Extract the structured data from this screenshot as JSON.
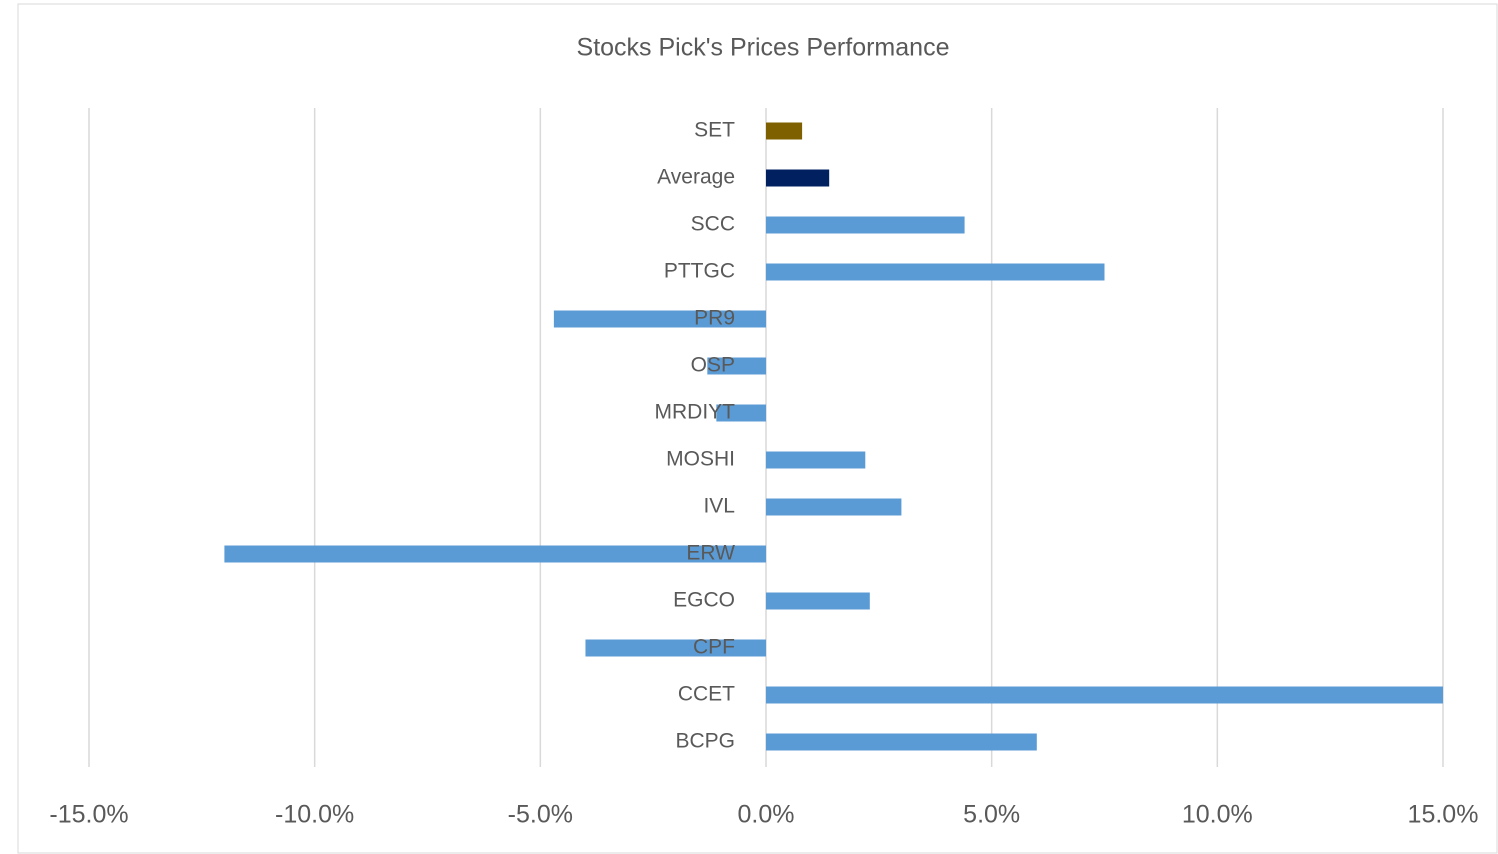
{
  "chart_data": {
    "type": "hbar",
    "title": "Stocks Pick's Prices Performance",
    "categories": [
      "SET",
      "Average",
      "SCC",
      "PTTGC",
      "PR9",
      "OSP",
      "MRDIYT",
      "MOSHI",
      "IVL",
      "ERW",
      "EGCO",
      "CPF",
      "CCET",
      "BCPG"
    ],
    "values": [
      0.8,
      1.4,
      4.4,
      7.5,
      -4.7,
      -1.3,
      -1.1,
      2.2,
      3.0,
      -12.0,
      2.3,
      -4.0,
      15.0,
      6.0
    ],
    "colors": [
      "#7f6000",
      "#002060",
      "#5b9bd5",
      "#5b9bd5",
      "#5b9bd5",
      "#5b9bd5",
      "#5b9bd5",
      "#5b9bd5",
      "#5b9bd5",
      "#5b9bd5",
      "#5b9bd5",
      "#5b9bd5",
      "#5b9bd5",
      "#5b9bd5"
    ],
    "xlim": [
      -15,
      15
    ],
    "xticks": [
      {
        "value": -15,
        "label": "-15.0%"
      },
      {
        "value": -10,
        "label": "-10.0%"
      },
      {
        "value": -5,
        "label": "-5.0%"
      },
      {
        "value": 0,
        "label": "0.0%"
      },
      {
        "value": 5,
        "label": "5.0%"
      },
      {
        "value": 10,
        "label": "10.0%"
      },
      {
        "value": 15,
        "label": "15.0%"
      }
    ],
    "grid": true
  }
}
